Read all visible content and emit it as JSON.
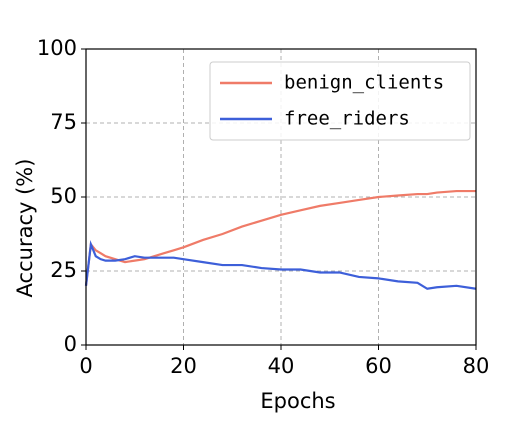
{
  "chart_data": {
    "type": "line",
    "xlabel": "Epochs",
    "ylabel": "Accuracy (%)",
    "x": [
      0,
      1,
      2,
      3,
      4,
      6,
      8,
      10,
      12,
      14,
      16,
      18,
      20,
      24,
      28,
      32,
      36,
      40,
      44,
      48,
      52,
      56,
      60,
      64,
      68,
      70,
      72,
      76,
      80
    ],
    "series": [
      {
        "name": "benign_clients",
        "color": "#ef7b68",
        "values": [
          20,
          34,
          32,
          31,
          30,
          29,
          28,
          28.5,
          29,
          30,
          31,
          32,
          33,
          35.5,
          37.5,
          40,
          42,
          44,
          45.5,
          47,
          48,
          49,
          50,
          50.5,
          51,
          51,
          51.5,
          52,
          52
        ]
      },
      {
        "name": "free_riders",
        "color": "#3d5fd9",
        "values": [
          20,
          34,
          30,
          29,
          28.5,
          28.5,
          29,
          30,
          29.5,
          29.5,
          29.5,
          29.5,
          29,
          28,
          27,
          27,
          26,
          25.5,
          25.5,
          24.5,
          24.5,
          23,
          22.5,
          21.5,
          21,
          19,
          19.5,
          20,
          19
        ]
      }
    ],
    "xlim": [
      0,
      80
    ],
    "xticks": [
      0,
      20,
      40,
      60,
      80
    ],
    "ylim": [
      0,
      100
    ],
    "yticks": [
      0,
      25,
      50,
      75,
      100
    ],
    "grid": true,
    "legend": "upper right"
  }
}
